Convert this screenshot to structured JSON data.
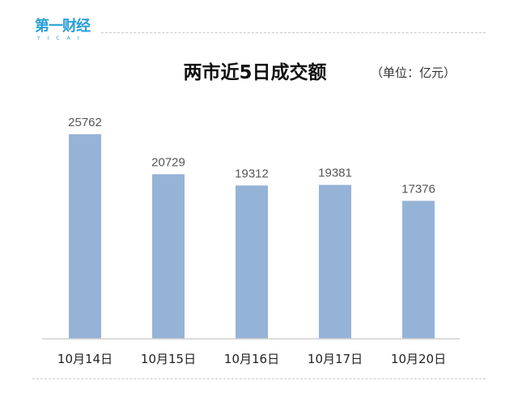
{
  "logo": {
    "text": "第一财经",
    "sub": "YICAI"
  },
  "chart_data": {
    "type": "bar",
    "title": "两市近5日成交额",
    "unit": "（单位：亿元）",
    "categories": [
      "10月14日",
      "10月15日",
      "10月16日",
      "10月17日",
      "10月20日"
    ],
    "values": [
      25762,
      20729,
      19312,
      19381,
      17376
    ],
    "bar_color": "#95b3d7",
    "grid": false,
    "legend": "none"
  }
}
